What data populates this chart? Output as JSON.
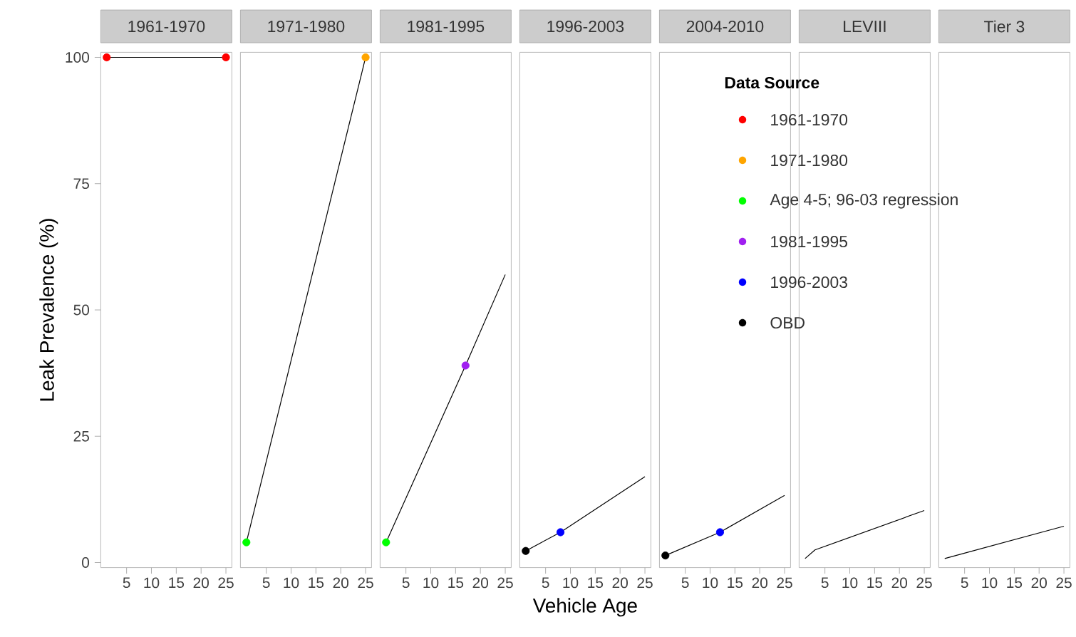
{
  "chart_data": [
    {
      "type": "line",
      "title": "1961-1970",
      "ylabel": "Leak Prevalence (%)",
      "legend": "right",
      "xlim": [
        -0.2,
        26.2
      ],
      "ylim": [
        -1,
        101
      ],
      "xticks": [
        5,
        10,
        15,
        20,
        25
      ],
      "yticks": [
        0,
        25,
        50,
        75,
        100
      ],
      "grid": false,
      "series": [
        {
          "color": "#000000",
          "line_style": "solid",
          "marker": "none",
          "x": [
            1,
            25
          ],
          "values": [
            100,
            100
          ]
        },
        {
          "type": "scatter",
          "name": "1961-1970",
          "color": "#ff0000",
          "marker": "circle",
          "x": [
            1,
            25
          ],
          "values": [
            100,
            100
          ]
        }
      ]
    },
    {
      "type": "line",
      "title": "1971-1980",
      "legend": "right",
      "xlim": [
        -0.2,
        26.2
      ],
      "ylim": [
        -1,
        101
      ],
      "xticks": [
        5,
        10,
        15,
        20,
        25
      ],
      "tick_labels": "x",
      "grid": false,
      "series": [
        {
          "color": "#000000",
          "line_style": "solid",
          "marker": "none",
          "x": [
            1,
            25
          ],
          "values": [
            4,
            100
          ]
        },
        {
          "type": "scatter",
          "name": "1971-1980",
          "color": "#ffa500",
          "marker": "circle",
          "x": [
            25
          ],
          "values": [
            100
          ]
        },
        {
          "type": "scatter",
          "name": "Age 4-5; 96-03 regression",
          "color": "#00ff00",
          "marker": "circle",
          "x": [
            1
          ],
          "values": [
            4
          ]
        }
      ]
    },
    {
      "type": "line",
      "title": "1981-1995",
      "legend": "right",
      "xlim": [
        -0.2,
        26.2
      ],
      "ylim": [
        -1,
        101
      ],
      "xticks": [
        5,
        10,
        15,
        20,
        25
      ],
      "tick_labels": "x",
      "grid": false,
      "series": [
        {
          "color": "#000000",
          "line_style": "solid",
          "marker": "none",
          "x": [
            1,
            17,
            25
          ],
          "values": [
            4,
            39,
            57
          ]
        },
        {
          "type": "scatter",
          "name": "1981-1995",
          "color": "#a020f0",
          "marker": "circle",
          "x": [
            17
          ],
          "values": [
            39
          ]
        },
        {
          "type": "scatter",
          "color": "#00ff00",
          "marker": "circle",
          "x": [
            1
          ],
          "values": [
            4
          ]
        }
      ]
    },
    {
      "type": "line",
      "title": "1996-2003",
      "xlabel": "Vehicle Age",
      "xlim": [
        -0.2,
        26.2
      ],
      "ylim": [
        -1,
        101
      ],
      "xticks": [
        5,
        10,
        15,
        20,
        25
      ],
      "tick_labels": "x",
      "grid": false,
      "series": [
        {
          "color": "#000000",
          "line_style": "solid",
          "marker": "none",
          "x": [
            1,
            8,
            25
          ],
          "values": [
            2.3,
            6,
            17
          ]
        },
        {
          "type": "scatter",
          "color": "#0000ff",
          "marker": "circle",
          "x": [
            8
          ],
          "values": [
            6
          ]
        },
        {
          "type": "scatter",
          "color": "#000000",
          "marker": "circle",
          "x": [
            1
          ],
          "values": [
            2.3
          ]
        }
      ]
    },
    {
      "type": "line",
      "title": "2004-2010",
      "legend_title": "Data Source",
      "legend": "top",
      "xlim": [
        -0.2,
        26.2
      ],
      "ylim": [
        -1,
        101
      ],
      "xticks": [
        5,
        10,
        15,
        20,
        25
      ],
      "tick_labels": "x",
      "grid": false,
      "series": [
        {
          "color": "#000000",
          "line_style": "solid",
          "marker": "none",
          "x": [
            1,
            12,
            25
          ],
          "values": [
            1.4,
            6,
            13.3
          ]
        },
        {
          "type": "scatter",
          "name": "1996-2003",
          "color": "#0000ff",
          "marker": "circle",
          "x": [
            12
          ],
          "values": [
            6
          ]
        },
        {
          "type": "scatter",
          "name": "OBD",
          "color": "#000000",
          "marker": "circle",
          "x": [
            1
          ],
          "values": [
            1.4
          ]
        }
      ]
    },
    {
      "type": "line",
      "title": "LEVIII",
      "xlim": [
        -0.2,
        26.2
      ],
      "ylim": [
        -1,
        101
      ],
      "xticks": [
        5,
        10,
        15,
        20,
        25
      ],
      "tick_labels": "x",
      "grid": false,
      "series": [
        {
          "color": "#000000",
          "line_style": "solid",
          "marker": "none",
          "x": [
            1,
            3,
            25
          ],
          "values": [
            0.8,
            2.5,
            10.3
          ]
        }
      ]
    },
    {
      "type": "line",
      "title": "Tier 3",
      "xlim": [
        -0.2,
        26.2
      ],
      "ylim": [
        -1,
        101
      ],
      "xticks": [
        5,
        10,
        15,
        20,
        25
      ],
      "tick_labels": "x",
      "grid": false,
      "series": [
        {
          "color": "#000000",
          "line_style": "solid",
          "marker": "none",
          "x": [
            1,
            25
          ],
          "values": [
            0.8,
            7.2
          ]
        }
      ]
    }
  ]
}
